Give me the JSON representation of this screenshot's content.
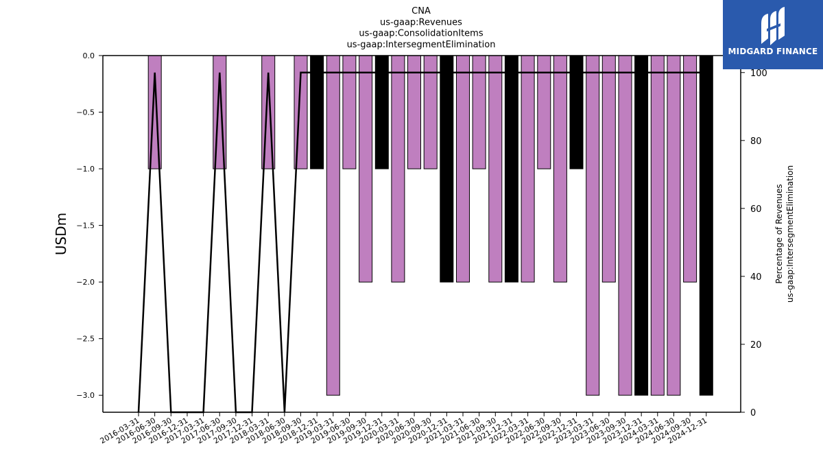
{
  "chart_data": {
    "type": "bar",
    "title_lines": [
      "CNA",
      "us-gaap:Revenues",
      "us-gaap:ConsolidationItems",
      "us-gaap:IntersegmentElimination"
    ],
    "ylabel": "USDm",
    "ylabel_right_lines": [
      "Percentage of Revenues",
      "us-gaap:IntersegmentElimination"
    ],
    "ylim": [
      -3.15,
      0
    ],
    "yticks": [
      0.0,
      -0.5,
      -1.0,
      -1.5,
      -2.0,
      -2.5,
      -3.0
    ],
    "ytick_labels": [
      "0.0",
      "−0.5",
      "−1.0",
      "−1.5",
      "−2.0",
      "−2.5",
      "−3.0"
    ],
    "y2lim": [
      0,
      105
    ],
    "y2ticks": [
      0,
      20,
      40,
      60,
      80,
      100
    ],
    "y2tick_labels": [
      "0",
      "20",
      "40",
      "60",
      "80",
      "100"
    ],
    "categories": [
      "2016-03-31",
      "2016-06-30",
      "2016-09-30",
      "2016-12-31",
      "2017-03-31",
      "2017-06-30",
      "2017-09-30",
      "2017-12-31",
      "2018-03-31",
      "2018-06-30",
      "2018-09-30",
      "2018-12-31",
      "2019-03-31",
      "2019-06-30",
      "2019-09-30",
      "2019-12-31",
      "2020-03-31",
      "2020-06-30",
      "2020-09-30",
      "2020-12-31",
      "2021-03-31",
      "2021-06-30",
      "2021-09-30",
      "2021-12-31",
      "2022-03-31",
      "2022-06-30",
      "2022-09-30",
      "2022-12-31",
      "2023-03-31",
      "2023-06-30",
      "2023-09-30",
      "2023-12-31",
      "2024-03-31",
      "2024-06-30",
      "2024-09-30",
      "2024-12-31"
    ],
    "bars": [
      null,
      -1,
      null,
      null,
      null,
      -1,
      null,
      null,
      -1,
      null,
      -1,
      -1,
      -3,
      -1,
      -2,
      -1,
      -2,
      -1,
      -1,
      -2,
      -2,
      -1,
      -2,
      -2,
      -2,
      -1,
      -2,
      -1,
      -3,
      -2,
      -3,
      -3,
      -3,
      -3,
      -2,
      -3
    ],
    "bar_highlight": [
      false,
      false,
      false,
      false,
      false,
      false,
      false,
      false,
      false,
      false,
      false,
      true,
      false,
      false,
      false,
      true,
      false,
      false,
      false,
      true,
      false,
      false,
      false,
      true,
      false,
      false,
      false,
      true,
      false,
      false,
      false,
      true,
      false,
      false,
      false,
      true
    ],
    "line_percentage": [
      0,
      100,
      0,
      0,
      0,
      100,
      0,
      0,
      100,
      0,
      100,
      100,
      100,
      100,
      100,
      100,
      100,
      100,
      100,
      100,
      100,
      100,
      100,
      100,
      100,
      100,
      100,
      100,
      100,
      100,
      100,
      100,
      100,
      100,
      100,
      100
    ],
    "colors": {
      "bar": "#bf7fbf",
      "bar_highlight": "#000000",
      "line": "#000000",
      "bar_edge": "#000000"
    },
    "grid": false
  },
  "logo": {
    "text": "MIDGARD FINANCE"
  }
}
